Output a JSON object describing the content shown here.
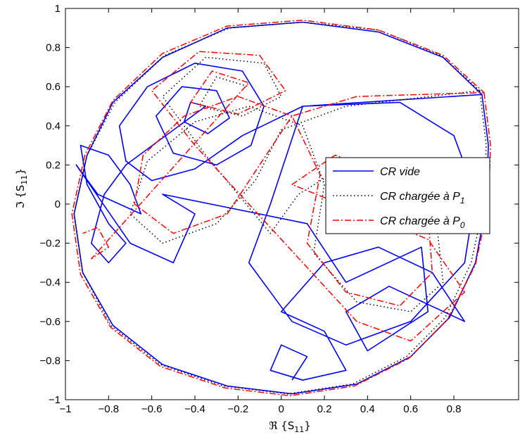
{
  "chart_data": {
    "type": "line",
    "title": "",
    "xlabel": "ℜ {S",
    "xlabel_sub": "11",
    "xlabel_end": "}",
    "ylabel": "ℑ {S",
    "ylabel_sub": "11",
    "ylabel_end": "}",
    "xlim": [
      -1,
      1
    ],
    "ylim": [
      -1,
      1
    ],
    "xticks": [
      -1,
      -0.8,
      -0.6,
      -0.4,
      -0.2,
      0,
      0.2,
      0.4,
      0.6,
      0.8
    ],
    "xtick_labels": [
      "−1",
      "−0.8",
      "−0.6",
      "−0.4",
      "−0.2",
      "0",
      "0.2",
      "0.4",
      "0.6",
      "0.8"
    ],
    "yticks": [
      -1,
      -0.8,
      -0.6,
      -0.4,
      -0.2,
      0,
      0.2,
      0.4,
      0.6,
      0.8,
      1
    ],
    "ytick_labels": [
      "−1",
      "−0.8",
      "−0.6",
      "−0.4",
      "−0.2",
      "0",
      "0.2",
      "0.4",
      "0.6",
      "0.8",
      "1"
    ],
    "grid": false,
    "legend_position": "right",
    "series": [
      {
        "name": "CR vide",
        "name_sub": "",
        "color": "#0000ff",
        "style": "solid",
        "values": [
          [
            0.93,
            0.56
          ],
          [
            0.96,
            0.3
          ],
          [
            0.95,
            0.0
          ],
          [
            0.9,
            -0.3
          ],
          [
            0.78,
            -0.58
          ],
          [
            0.6,
            -0.78
          ],
          [
            0.35,
            -0.92
          ],
          [
            0.05,
            -0.97
          ],
          [
            -0.25,
            -0.93
          ],
          [
            -0.55,
            -0.82
          ],
          [
            -0.78,
            -0.62
          ],
          [
            -0.92,
            -0.35
          ],
          [
            -0.96,
            -0.05
          ],
          [
            -0.9,
            0.25
          ],
          [
            -0.78,
            0.52
          ],
          [
            -0.55,
            0.75
          ],
          [
            -0.25,
            0.9
          ],
          [
            0.1,
            0.93
          ],
          [
            0.45,
            0.88
          ],
          [
            0.75,
            0.75
          ],
          [
            0.93,
            0.56
          ],
          [
            0.1,
            0.5
          ],
          [
            0.55,
            0.52
          ],
          [
            0.8,
            0.35
          ],
          [
            0.9,
            0.05
          ],
          [
            0.85,
            -0.3
          ],
          [
            0.6,
            -0.6
          ],
          [
            0.3,
            -0.72
          ],
          [
            0.05,
            -0.6
          ],
          [
            -0.15,
            -0.3
          ],
          [
            -0.05,
            0.0
          ],
          [
            0.1,
            0.5
          ],
          [
            -0.18,
            0.35
          ],
          [
            -0.4,
            0.18
          ],
          [
            -0.6,
            0.12
          ],
          [
            -0.72,
            0.22
          ],
          [
            -0.75,
            0.4
          ],
          [
            -0.62,
            0.6
          ],
          [
            -0.4,
            0.72
          ],
          [
            -0.18,
            0.68
          ],
          [
            -0.08,
            0.5
          ],
          [
            -0.14,
            0.3
          ],
          [
            -0.3,
            0.2
          ],
          [
            -0.5,
            0.26
          ],
          [
            -0.58,
            0.45
          ],
          [
            -0.46,
            0.6
          ],
          [
            -0.3,
            0.58
          ],
          [
            -0.24,
            0.44
          ],
          [
            -0.34,
            0.36
          ],
          [
            -0.45,
            0.42
          ],
          [
            -0.42,
            0.52
          ],
          [
            -0.35,
            0.5
          ],
          [
            -0.72,
            0.2
          ],
          [
            -0.82,
            0.05
          ],
          [
            -0.88,
            -0.2
          ],
          [
            -0.8,
            -0.3
          ],
          [
            -0.72,
            -0.2
          ],
          [
            -0.8,
            -0.1
          ],
          [
            -0.9,
            0.1
          ],
          [
            -0.93,
            0.3
          ],
          [
            -0.8,
            0.25
          ],
          [
            -0.7,
            0.1
          ],
          [
            -0.65,
            -0.05
          ],
          [
            -0.85,
            0.05
          ],
          [
            -0.95,
            0.2
          ],
          [
            -0.7,
            -0.2
          ],
          [
            -0.5,
            -0.3
          ],
          [
            -0.4,
            -0.05
          ],
          [
            -0.55,
            0.05
          ],
          [
            0.12,
            -0.1
          ],
          [
            0.3,
            -0.4
          ],
          [
            0.65,
            -0.22
          ],
          [
            0.68,
            -0.55
          ],
          [
            0.4,
            -0.75
          ],
          [
            0.3,
            -0.55
          ],
          [
            0.5,
            -0.42
          ],
          [
            0.85,
            -0.6
          ],
          [
            0.7,
            -0.35
          ],
          [
            0.45,
            -0.22
          ],
          [
            0.2,
            -0.3
          ],
          [
            0.0,
            -0.55
          ],
          [
            0.2,
            -0.65
          ],
          [
            0.3,
            -0.85
          ],
          [
            0.1,
            -0.9
          ],
          [
            -0.05,
            -0.85
          ],
          [
            0.0,
            -0.72
          ],
          [
            0.12,
            -0.78
          ],
          [
            0.05,
            -0.9
          ]
        ]
      },
      {
        "name": "CR chargée à P",
        "name_sub": "1",
        "color": "#000000",
        "style": "dotted",
        "values": [
          [
            0.92,
            0.58
          ],
          [
            0.95,
            0.3
          ],
          [
            0.94,
            0.0
          ],
          [
            0.88,
            -0.3
          ],
          [
            0.76,
            -0.58
          ],
          [
            0.58,
            -0.78
          ],
          [
            0.33,
            -0.92
          ],
          [
            0.03,
            -0.97
          ],
          [
            -0.27,
            -0.93
          ],
          [
            -0.56,
            -0.82
          ],
          [
            -0.79,
            -0.62
          ],
          [
            -0.92,
            -0.35
          ],
          [
            -0.96,
            -0.05
          ],
          [
            -0.9,
            0.25
          ],
          [
            -0.77,
            0.52
          ],
          [
            -0.54,
            0.76
          ],
          [
            -0.24,
            0.9
          ],
          [
            0.1,
            0.93
          ],
          [
            0.45,
            0.89
          ],
          [
            0.74,
            0.76
          ],
          [
            0.92,
            0.58
          ],
          [
            0.3,
            0.5
          ],
          [
            0.0,
            0.38
          ],
          [
            -0.12,
            0.12
          ],
          [
            -0.3,
            -0.1
          ],
          [
            -0.55,
            -0.2
          ],
          [
            -0.7,
            -0.05
          ],
          [
            -0.62,
            0.22
          ],
          [
            -0.4,
            0.42
          ],
          [
            -0.15,
            0.5
          ],
          [
            0.1,
            0.4
          ],
          [
            0.2,
            0.1
          ],
          [
            0.15,
            -0.25
          ],
          [
            0.35,
            -0.5
          ],
          [
            0.6,
            -0.55
          ],
          [
            0.75,
            -0.4
          ],
          [
            0.72,
            -0.1
          ],
          [
            0.55,
            0.1
          ],
          [
            0.3,
            0.2
          ],
          [
            0.08,
            0.05
          ],
          [
            -0.05,
            -0.15
          ],
          [
            -0.35,
            0.25
          ],
          [
            -0.55,
            0.55
          ],
          [
            -0.35,
            0.75
          ],
          [
            -0.08,
            0.72
          ],
          [
            0.0,
            0.55
          ],
          [
            -0.18,
            0.45
          ],
          [
            -0.38,
            0.5
          ],
          [
            -0.3,
            0.65
          ],
          [
            -0.15,
            0.6
          ]
        ]
      },
      {
        "name": "CR chargée à P",
        "name_sub": "0",
        "color": "#ff0000",
        "style": "dashdot",
        "values": [
          [
            0.94,
            0.57
          ],
          [
            0.97,
            0.3
          ],
          [
            0.96,
            0.0
          ],
          [
            0.9,
            -0.31
          ],
          [
            0.77,
            -0.59
          ],
          [
            0.59,
            -0.79
          ],
          [
            0.34,
            -0.93
          ],
          [
            0.04,
            -0.98
          ],
          [
            -0.26,
            -0.94
          ],
          [
            -0.56,
            -0.83
          ],
          [
            -0.79,
            -0.63
          ],
          [
            -0.93,
            -0.36
          ],
          [
            -0.97,
            -0.05
          ],
          [
            -0.91,
            0.25
          ],
          [
            -0.78,
            0.53
          ],
          [
            -0.55,
            0.77
          ],
          [
            -0.25,
            0.91
          ],
          [
            0.1,
            0.94
          ],
          [
            0.45,
            0.89
          ],
          [
            0.75,
            0.76
          ],
          [
            0.94,
            0.57
          ],
          [
            0.35,
            0.55
          ],
          [
            0.05,
            0.45
          ],
          [
            -0.1,
            0.2
          ],
          [
            -0.25,
            -0.05
          ],
          [
            -0.5,
            -0.15
          ],
          [
            -0.68,
            0.0
          ],
          [
            -0.64,
            0.25
          ],
          [
            -0.45,
            0.45
          ],
          [
            -0.2,
            0.55
          ],
          [
            0.05,
            0.45
          ],
          [
            0.18,
            0.15
          ],
          [
            0.12,
            -0.2
          ],
          [
            0.3,
            -0.45
          ],
          [
            0.55,
            -0.52
          ],
          [
            0.7,
            -0.35
          ],
          [
            0.68,
            -0.05
          ],
          [
            0.5,
            0.15
          ],
          [
            0.25,
            0.25
          ],
          [
            0.05,
            0.1
          ],
          [
            0.68,
            -0.18
          ],
          [
            0.85,
            -0.45
          ],
          [
            0.6,
            -0.7
          ],
          [
            0.35,
            -0.6
          ],
          [
            -0.4,
            0.3
          ],
          [
            -0.6,
            0.58
          ],
          [
            -0.38,
            0.78
          ],
          [
            -0.1,
            0.76
          ],
          [
            0.02,
            0.58
          ],
          [
            -0.2,
            0.46
          ],
          [
            -0.42,
            0.52
          ],
          [
            -0.32,
            0.68
          ],
          [
            -0.15,
            0.62
          ],
          [
            -0.88,
            -0.28
          ],
          [
            -0.8,
            -0.22
          ],
          [
            -0.85,
            -0.12
          ],
          [
            -0.92,
            -0.15
          ]
        ]
      }
    ]
  }
}
